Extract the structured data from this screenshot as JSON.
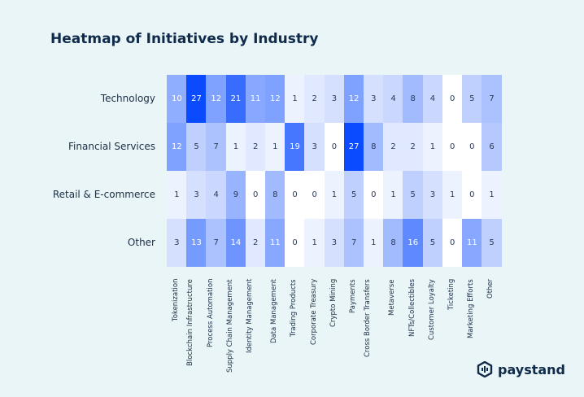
{
  "chart_data": {
    "type": "heatmap",
    "title": "Heatmap of Initiatives by Industry",
    "rows": [
      "Technology",
      "Financial Services",
      "Retail & E-commerce",
      "Other"
    ],
    "columns": [
      "Tokenization",
      "Blockchain Infrastructure",
      "Process Automation",
      "Supply Chain Management",
      "Identity Management",
      "Data Management",
      "Trading Products",
      "Corporate Treasury",
      "Crypto Mining",
      "Payments",
      "Cross Border Transfers",
      "Metaverse",
      "NFTs/Collectibles",
      "Customer Loyalty",
      "Ticketing",
      "Marketing Efforts",
      "Other"
    ],
    "values": [
      [
        10,
        27,
        12,
        21,
        11,
        12,
        1,
        2,
        3,
        12,
        3,
        4,
        8,
        4,
        0,
        5,
        7
      ],
      [
        12,
        5,
        7,
        1,
        2,
        1,
        19,
        3,
        0,
        27,
        8,
        2,
        2,
        1,
        0,
        0,
        6
      ],
      [
        1,
        3,
        4,
        9,
        0,
        8,
        0,
        0,
        1,
        5,
        0,
        1,
        5,
        3,
        1,
        0,
        1
      ],
      [
        3,
        13,
        7,
        14,
        2,
        11,
        0,
        1,
        3,
        7,
        1,
        8,
        16,
        5,
        0,
        11,
        5
      ]
    ],
    "color_scale": {
      "low": "#ffffff",
      "high": "#0a4bff"
    },
    "value_range": [
      0,
      27
    ]
  },
  "logo": {
    "text": "paystand"
  }
}
